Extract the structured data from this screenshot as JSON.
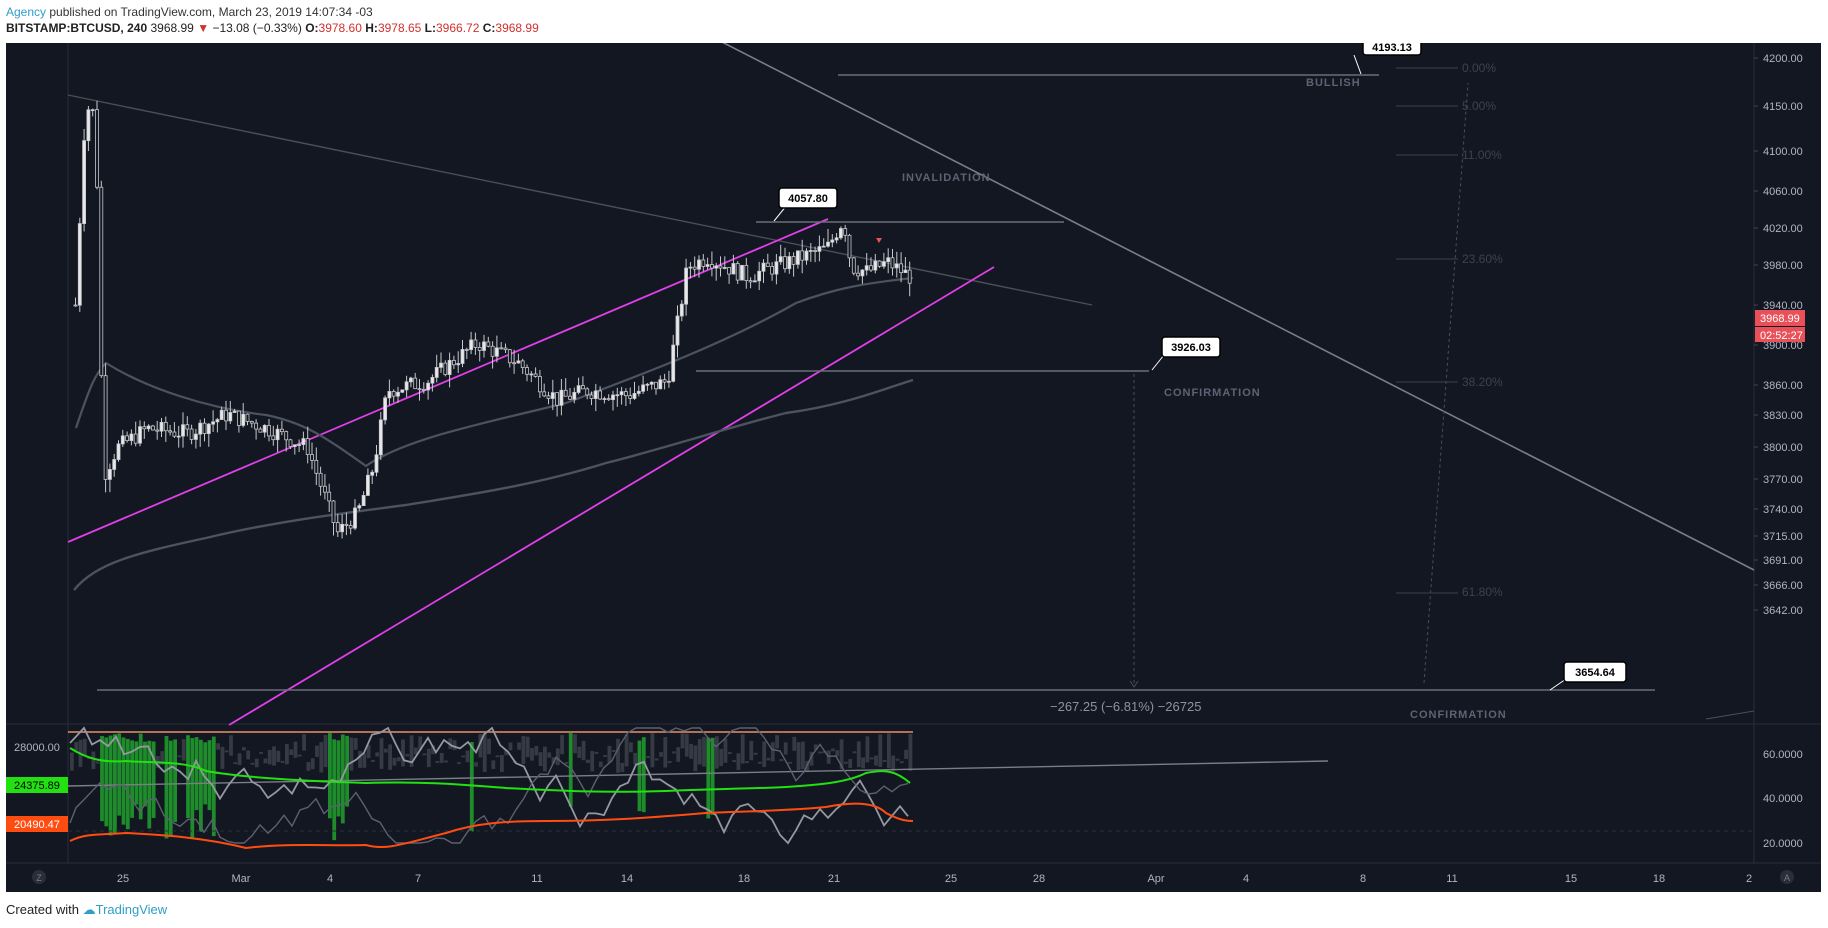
{
  "header": {
    "author": "Agency",
    "published": " published on TradingView.com, March 23, 2019 14:07:34 -03"
  },
  "ticker": {
    "symbol": "BITSTAMP:BTCUSD, 240",
    "last": "3968.99",
    "change_arrow": "▼",
    "change": "−13.08 (−0.33%)",
    "o_label": "O:",
    "o": "3978.60",
    "h_label": "H:",
    "h": "3978.65",
    "l_label": "L:",
    "l": "3966.72",
    "c_label": "C:",
    "c": "3968.99"
  },
  "footer": {
    "created": "Created with",
    "brand": "TradingView"
  },
  "colors": {
    "background": "#131722",
    "channel": "#e040e8",
    "price_tag": "#e8515a",
    "volume_green": "#1e8c2a",
    "indicator_green": "#22e012",
    "indicator_orange": "#ff4d12",
    "text_dim": "#5d6372"
  },
  "chart_data": {
    "type": "candlestick",
    "symbol": "BITSTAMP:BTCUSD",
    "interval": "240",
    "price_axis": {
      "ticks": [
        "4200.00",
        "4150.00",
        "4100.00",
        "4060.00",
        "4020.00",
        "3980.00",
        "3940.00",
        "3900.00",
        "3860.00",
        "3830.00",
        "3800.00",
        "3770.00",
        "3740.00",
        "3715.00",
        "3691.00",
        "3666.00",
        "3642.00"
      ],
      "last_price_tag": "3968.99",
      "countdown_tag": "02:52:27"
    },
    "time_axis": {
      "ticks": [
        "25",
        "Mar",
        "4",
        "7",
        "11",
        "14",
        "18",
        "21",
        "25",
        "28",
        "Apr",
        "4",
        "8",
        "11",
        "15",
        "18",
        "2"
      ]
    },
    "annotations": {
      "callouts": [
        "4193.13",
        "4057.80",
        "3926.03",
        "3654.64"
      ],
      "labels": [
        "BULLISH",
        "INVALIDATION",
        "CONFIRMATION",
        "CONFIRMATION"
      ],
      "measure": "−267.25 (−6.81%) −26725",
      "fib_levels": [
        "0.00%",
        "5.00%",
        "11.00%",
        "23.60%",
        "38.20%",
        "61.80%"
      ]
    },
    "indicator_pane": {
      "left_ticks": [
        "28000.00"
      ],
      "left_tags": [
        "24375.89",
        "20490.47"
      ],
      "right_ticks": [
        "60.0000",
        "40.0000",
        "20.0000"
      ]
    },
    "corner_buttons": [
      "Z",
      "A"
    ],
    "candles_approx": [
      {
        "x": "Feb 23",
        "o": 3940,
        "h": 4190,
        "l": 3930,
        "c": 4150
      },
      {
        "x": "Feb 24",
        "o": 4150,
        "h": 4160,
        "l": 3710,
        "c": 3760
      },
      {
        "x": "Feb 26",
        "o": 3800,
        "h": 3840,
        "l": 3780,
        "c": 3800
      },
      {
        "x": "Feb 28",
        "o": 3800,
        "h": 3860,
        "l": 3780,
        "c": 3810
      },
      {
        "x": "Mar 2",
        "o": 3810,
        "h": 3840,
        "l": 3790,
        "c": 3810
      },
      {
        "x": "Mar 4",
        "o": 3800,
        "h": 3810,
        "l": 3680,
        "c": 3700
      },
      {
        "x": "Mar 5",
        "o": 3700,
        "h": 3870,
        "l": 3690,
        "c": 3850
      },
      {
        "x": "Mar 7",
        "o": 3850,
        "h": 3900,
        "l": 3830,
        "c": 3870
      },
      {
        "x": "Mar 9",
        "o": 3870,
        "h": 3940,
        "l": 3860,
        "c": 3900
      },
      {
        "x": "Mar 11",
        "o": 3900,
        "h": 3910,
        "l": 3800,
        "c": 3830
      },
      {
        "x": "Mar 13",
        "o": 3830,
        "h": 3860,
        "l": 3820,
        "c": 3840
      },
      {
        "x": "Mar 15",
        "o": 3840,
        "h": 4000,
        "l": 3830,
        "c": 3990
      },
      {
        "x": "Mar 17",
        "o": 3990,
        "h": 4000,
        "l": 3960,
        "c": 3980
      },
      {
        "x": "Mar 19",
        "o": 3980,
        "h": 4010,
        "l": 3970,
        "c": 3990
      },
      {
        "x": "Mar 21",
        "o": 4010,
        "h": 4057,
        "l": 3930,
        "c": 3980
      },
      {
        "x": "Mar 23",
        "o": 3978.6,
        "h": 3978.65,
        "l": 3966.72,
        "c": 3968.99
      }
    ]
  }
}
